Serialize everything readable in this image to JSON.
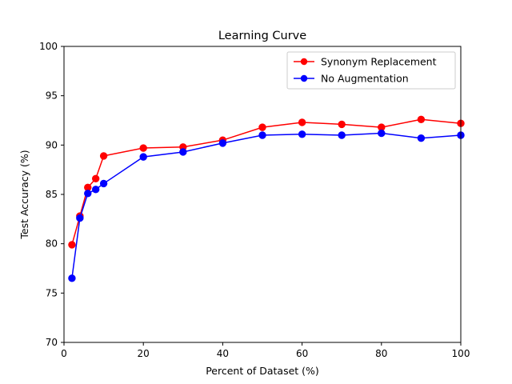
{
  "chart_data": {
    "type": "line",
    "title": "Learning Curve",
    "xlabel": "Percent of Dataset (%)",
    "ylabel": "Test Accuracy (%)",
    "xlim": [
      0,
      100
    ],
    "ylim": [
      70,
      100
    ],
    "xticks": [
      0,
      20,
      40,
      60,
      80,
      100
    ],
    "yticks": [
      70,
      75,
      80,
      85,
      90,
      95,
      100
    ],
    "grid": false,
    "legend_position": "top-right",
    "x": [
      2,
      4,
      6,
      8,
      10,
      20,
      30,
      40,
      50,
      60,
      70,
      80,
      90,
      100
    ],
    "series": [
      {
        "name": "Synonym Replacement",
        "color": "#ff0000",
        "values": [
          79.9,
          82.8,
          85.7,
          86.6,
          88.9,
          89.7,
          89.8,
          90.5,
          91.8,
          92.3,
          92.1,
          91.8,
          92.6,
          92.2
        ]
      },
      {
        "name": "No Augmentation",
        "color": "#0000ff",
        "values": [
          76.5,
          82.6,
          85.1,
          85.5,
          86.1,
          88.8,
          89.3,
          90.2,
          91.0,
          91.1,
          91.0,
          91.2,
          90.7,
          91.0
        ]
      }
    ]
  }
}
